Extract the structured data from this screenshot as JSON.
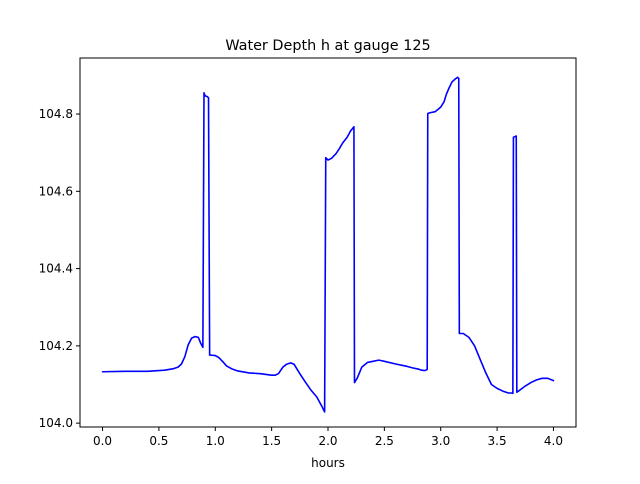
{
  "chart_data": {
    "type": "line",
    "title": "Water Depth h at gauge 125",
    "xlabel": "hours",
    "ylabel": "",
    "xlim": [
      -0.2,
      4.2
    ],
    "ylim": [
      103.99,
      104.945
    ],
    "xticks": [
      0.0,
      0.5,
      1.0,
      1.5,
      2.0,
      2.5,
      3.0,
      3.5,
      4.0
    ],
    "xtick_labels": [
      "0.0",
      "0.5",
      "1.0",
      "1.5",
      "2.0",
      "2.5",
      "3.0",
      "3.5",
      "4.0"
    ],
    "yticks": [
      104.0,
      104.2,
      104.4,
      104.6,
      104.8
    ],
    "ytick_labels": [
      "104.0",
      "104.2",
      "104.4",
      "104.6",
      "104.8"
    ],
    "grid": false,
    "legend": "none",
    "series": [
      {
        "color": "#0000ff",
        "x": [
          0.0,
          0.2,
          0.4,
          0.55,
          0.63,
          0.67,
          0.7,
          0.73,
          0.76,
          0.79,
          0.82,
          0.85,
          0.87,
          0.89,
          0.9,
          0.91,
          0.93,
          0.94,
          0.95,
          0.96,
          1.0,
          1.03,
          1.07,
          1.1,
          1.15,
          1.2,
          1.3,
          1.4,
          1.5,
          1.53,
          1.56,
          1.6,
          1.63,
          1.67,
          1.7,
          1.75,
          1.8,
          1.85,
          1.9,
          1.95,
          1.97,
          1.98,
          2.0,
          2.03,
          2.07,
          2.1,
          2.13,
          2.17,
          2.2,
          2.23,
          2.235,
          2.26,
          2.3,
          2.35,
          2.4,
          2.45,
          2.5,
          2.6,
          2.7,
          2.75,
          2.8,
          2.83,
          2.86,
          2.88,
          2.885,
          2.9,
          2.95,
          3.0,
          3.03,
          3.05,
          3.07,
          3.1,
          3.13,
          3.15,
          3.16,
          3.165,
          3.2,
          3.25,
          3.3,
          3.35,
          3.4,
          3.45,
          3.5,
          3.55,
          3.6,
          3.63,
          3.64,
          3.645,
          3.67,
          3.675,
          3.7,
          3.75,
          3.8,
          3.85,
          3.9,
          3.95,
          4.0
        ],
        "y": [
          104.133,
          104.134,
          104.134,
          104.137,
          104.141,
          104.145,
          104.153,
          104.172,
          104.203,
          104.22,
          104.224,
          104.222,
          104.207,
          104.196,
          104.855,
          104.847,
          104.845,
          104.842,
          104.176,
          104.176,
          104.175,
          104.17,
          104.158,
          104.148,
          104.14,
          104.135,
          104.13,
          104.128,
          104.124,
          104.124,
          104.128,
          104.145,
          104.152,
          104.156,
          104.152,
          104.128,
          104.106,
          104.085,
          104.068,
          104.041,
          104.029,
          104.687,
          104.681,
          104.685,
          104.697,
          104.71,
          104.725,
          104.74,
          104.756,
          104.767,
          104.105,
          104.117,
          104.145,
          104.157,
          104.16,
          104.163,
          104.16,
          104.153,
          104.147,
          104.143,
          104.14,
          104.137,
          104.136,
          104.139,
          104.801,
          104.803,
          104.806,
          104.818,
          104.832,
          104.851,
          104.865,
          104.883,
          104.891,
          104.895,
          104.892,
          104.232,
          104.232,
          104.222,
          104.2,
          104.165,
          104.13,
          104.1,
          104.09,
          104.083,
          104.078,
          104.078,
          104.077,
          104.74,
          104.743,
          104.08,
          104.085,
          104.096,
          104.105,
          104.112,
          104.116,
          104.116,
          104.11
        ]
      }
    ]
  }
}
